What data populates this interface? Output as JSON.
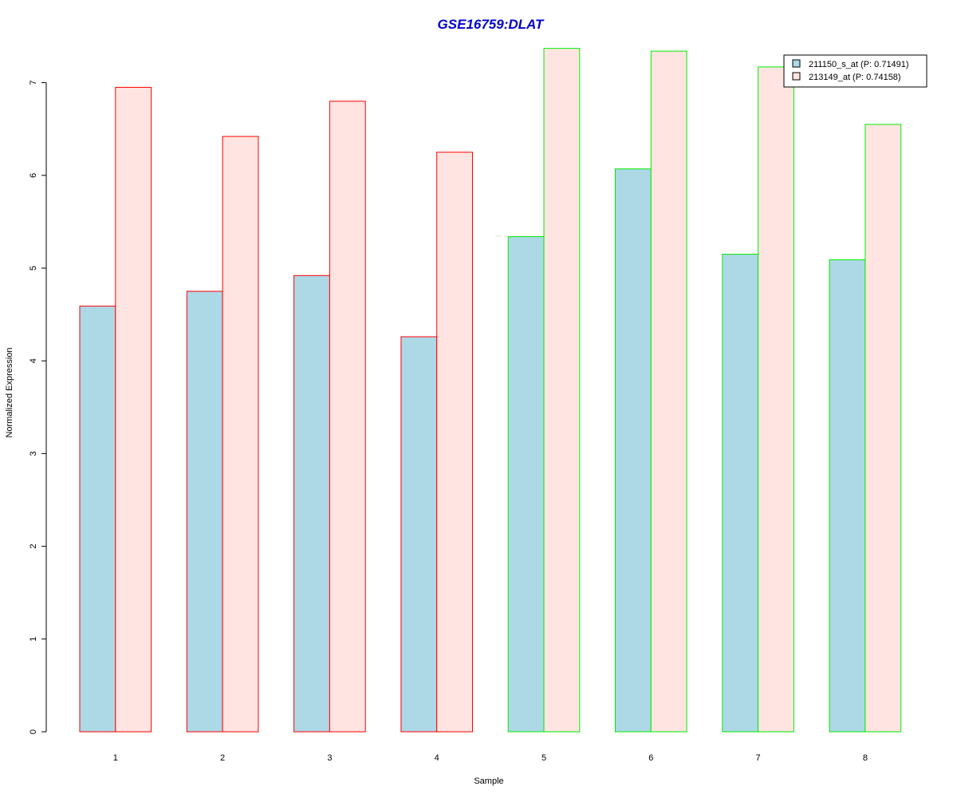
{
  "chart_data": {
    "type": "bar",
    "title": "GSE16759:DLAT",
    "xlabel": "Sample",
    "ylabel": "Normalized Expression",
    "categories": [
      "1",
      "2",
      "3",
      "4",
      "5",
      "6",
      "7",
      "8"
    ],
    "ylim": [
      0,
      7.35
    ],
    "yticks": [
      0,
      1,
      2,
      3,
      4,
      5,
      6,
      7
    ],
    "series": [
      {
        "name": "211150_s_at (P: 0.71491)",
        "fill": "#add8e6",
        "values": [
          4.59,
          4.75,
          4.92,
          4.26,
          5.34,
          6.07,
          5.15,
          5.09
        ]
      },
      {
        "name": "213149_at (P: 0.74158)",
        "fill": "#ffe4e1",
        "values": [
          6.95,
          6.42,
          6.8,
          6.25,
          7.37,
          7.34,
          7.17,
          6.55
        ]
      }
    ],
    "group_border_colors": [
      "#ff0000",
      "#ff0000",
      "#ff0000",
      "#ff0000",
      "#00ee00",
      "#00ee00",
      "#00ee00",
      "#00ee00"
    ],
    "legend_position": "top-right",
    "grid": false,
    "colors": {
      "title": "#0000cc",
      "axis": "#000000"
    }
  }
}
